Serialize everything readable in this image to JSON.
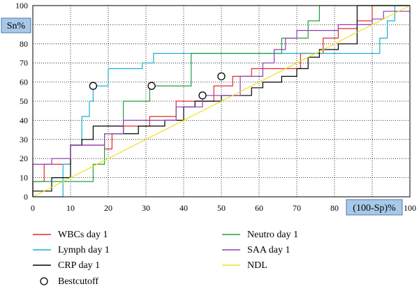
{
  "chart_data": {
    "type": "line",
    "xlabel": "(100-Sp)%",
    "ylabel": "Sn%",
    "xlim": [
      0,
      100
    ],
    "ylim": [
      0,
      100
    ],
    "xticks": [
      "0",
      "10",
      "20",
      "30",
      "40",
      "50",
      "60",
      "70",
      "80",
      "90",
      "100"
    ],
    "yticks": [
      "0",
      "10",
      "20",
      "30",
      "40",
      "50",
      "60",
      "70",
      "80",
      "90",
      "100"
    ],
    "grid": true,
    "series": [
      {
        "name": "WBCs day 1",
        "color": "#e8282a",
        "x": [
          0,
          0,
          3,
          3,
          10,
          10,
          19,
          19,
          21,
          21,
          24,
          24,
          31,
          31,
          38,
          38,
          48,
          48,
          53,
          53,
          58,
          58,
          71,
          71,
          77,
          77,
          81,
          81,
          86,
          86,
          90,
          90,
          100
        ],
        "y": [
          0,
          8,
          8,
          17,
          17,
          27,
          27,
          25,
          25,
          33,
          33,
          37,
          37,
          42,
          42,
          50,
          50,
          58,
          58,
          63,
          63,
          67,
          67,
          75,
          75,
          83,
          83,
          88,
          88,
          92,
          92,
          100,
          100
        ]
      },
      {
        "name": "Lymph day 1",
        "color": "#1ab0d0",
        "x": [
          0,
          8,
          8,
          10,
          10,
          13,
          13,
          15,
          15,
          16,
          16,
          20,
          20,
          29,
          29,
          32,
          32,
          92,
          92,
          94,
          94,
          96,
          96,
          100
        ],
        "y": [
          0,
          0,
          17,
          17,
          27,
          27,
          42,
          42,
          50,
          50,
          58,
          58,
          67,
          67,
          70,
          70,
          75,
          75,
          83,
          83,
          92,
          92,
          100,
          100
        ]
      },
      {
        "name": "CRP day 1",
        "color": "#000000",
        "x": [
          0,
          0,
          5,
          5,
          10,
          10,
          13,
          13,
          16,
          16,
          24,
          24,
          28,
          28,
          35,
          35,
          40,
          40,
          43,
          43,
          50,
          50,
          58,
          58,
          61,
          61,
          66,
          66,
          70,
          70,
          73,
          73,
          76,
          76,
          81,
          81,
          86,
          86,
          100
        ],
        "y": [
          0,
          3,
          3,
          10,
          10,
          27,
          27,
          30,
          30,
          37,
          37,
          33,
          33,
          37,
          37,
          40,
          40,
          47,
          47,
          50,
          50,
          53,
          53,
          57,
          57,
          60,
          60,
          63,
          63,
          67,
          67,
          73,
          73,
          77,
          77,
          80,
          80,
          100,
          100
        ]
      },
      {
        "name": "Neutro day 1",
        "color": "#20a040",
        "x": [
          0,
          0,
          2,
          2,
          16,
          16,
          19,
          19,
          24,
          24,
          26,
          26,
          31,
          31,
          33,
          33,
          42,
          42,
          66,
          66,
          70,
          70,
          73,
          73,
          76,
          76,
          100
        ],
        "y": [
          0,
          8,
          8,
          8,
          8,
          17,
          17,
          33,
          33,
          50,
          50,
          50,
          50,
          58,
          58,
          58,
          58,
          75,
          75,
          83,
          83,
          83,
          83,
          92,
          92,
          100,
          100
        ]
      },
      {
        "name": "SAA day 1",
        "color": "#8b3fb5",
        "x": [
          0,
          0,
          5,
          5,
          10,
          10,
          13,
          13,
          19,
          19,
          24,
          24,
          28,
          28,
          38,
          38,
          45,
          45,
          55,
          55,
          61,
          61,
          64,
          64,
          67,
          67,
          70,
          70,
          77,
          77,
          81,
          81,
          90,
          90,
          93,
          93,
          100
        ],
        "y": [
          0,
          17,
          17,
          20,
          20,
          27,
          27,
          27,
          27,
          33,
          33,
          40,
          40,
          40,
          40,
          47,
          47,
          53,
          53,
          63,
          63,
          70,
          70,
          77,
          77,
          83,
          83,
          87,
          87,
          87,
          87,
          90,
          90,
          93,
          93,
          97,
          97
        ]
      },
      {
        "name": "NDL",
        "color": "#f0e020",
        "x": [
          0,
          100
        ],
        "y": [
          0,
          100
        ]
      }
    ],
    "cutoffs": {
      "name": "Bestcutoff",
      "points": [
        {
          "x": 16,
          "y": 58
        },
        {
          "x": 31.5,
          "y": 58
        },
        {
          "x": 45,
          "y": 53
        },
        {
          "x": 50,
          "y": 63
        }
      ]
    },
    "legend": [
      {
        "label": "WBCs day 1",
        "color": "#e8282a",
        "marker": "line"
      },
      {
        "label": "Neutro day 1",
        "color": "#20a040",
        "marker": "line"
      },
      {
        "label": "Lymph day 1",
        "color": "#1ab0d0",
        "marker": "line"
      },
      {
        "label": "SAA day 1",
        "color": "#8b3fb5",
        "marker": "line"
      },
      {
        "label": "CRP day 1",
        "color": "#000000",
        "marker": "line"
      },
      {
        "label": "NDL",
        "color": "#f0e020",
        "marker": "line"
      },
      {
        "label": "Bestcutoff",
        "color": "#000000",
        "marker": "circle"
      }
    ]
  }
}
